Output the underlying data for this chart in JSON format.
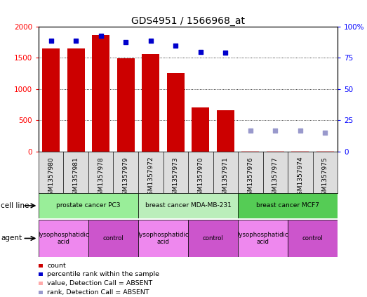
{
  "title": "GDS4951 / 1566968_at",
  "samples": [
    "GSM1357980",
    "GSM1357981",
    "GSM1357978",
    "GSM1357979",
    "GSM1357972",
    "GSM1357973",
    "GSM1357970",
    "GSM1357971",
    "GSM1357976",
    "GSM1357977",
    "GSM1357974",
    "GSM1357975"
  ],
  "bar_values": [
    1650,
    1650,
    1870,
    1490,
    1560,
    1260,
    710,
    660,
    5,
    5,
    5,
    5
  ],
  "bar_absent": [
    false,
    false,
    false,
    false,
    false,
    false,
    false,
    false,
    true,
    true,
    true,
    true
  ],
  "scatter_right_values": [
    89,
    89,
    93,
    87.5,
    89,
    85,
    80,
    79,
    16.5,
    16.5,
    17,
    15
  ],
  "scatter_absent": [
    false,
    false,
    false,
    false,
    false,
    false,
    false,
    false,
    true,
    true,
    true,
    true
  ],
  "bar_color": "#cc0000",
  "bar_color_absent": "#ffaaaa",
  "scatter_color": "#0000cc",
  "scatter_color_absent": "#9999cc",
  "ylim_left": [
    0,
    2000
  ],
  "ylim_right": [
    0,
    100
  ],
  "yticks_left": [
    0,
    500,
    1000,
    1500,
    2000
  ],
  "yticks_right": [
    0,
    25,
    50,
    75,
    100
  ],
  "cell_lines": [
    {
      "label": "prostate cancer PC3",
      "start": 0,
      "end": 4,
      "color": "#99ee99"
    },
    {
      "label": "breast cancer MDA-MB-231",
      "start": 4,
      "end": 8,
      "color": "#bbeebb"
    },
    {
      "label": "breast cancer MCF7",
      "start": 8,
      "end": 12,
      "color": "#55cc55"
    }
  ],
  "agents": [
    {
      "label": "lysophosphatidic\nacid",
      "start": 0,
      "end": 2,
      "color": "#ee88ee"
    },
    {
      "label": "control",
      "start": 2,
      "end": 4,
      "color": "#cc55cc"
    },
    {
      "label": "lysophosphatidic\nacid",
      "start": 4,
      "end": 6,
      "color": "#ee88ee"
    },
    {
      "label": "control",
      "start": 6,
      "end": 8,
      "color": "#cc55cc"
    },
    {
      "label": "lysophosphatidic\nacid",
      "start": 8,
      "end": 10,
      "color": "#ee88ee"
    },
    {
      "label": "control",
      "start": 10,
      "end": 12,
      "color": "#cc55cc"
    }
  ],
  "legend_items": [
    {
      "label": "count",
      "color": "#cc0000"
    },
    {
      "label": "percentile rank within the sample",
      "color": "#0000cc"
    },
    {
      "label": "value, Detection Call = ABSENT",
      "color": "#ffaaaa"
    },
    {
      "label": "rank, Detection Call = ABSENT",
      "color": "#9999cc"
    }
  ],
  "bg_color": "#dddddd"
}
